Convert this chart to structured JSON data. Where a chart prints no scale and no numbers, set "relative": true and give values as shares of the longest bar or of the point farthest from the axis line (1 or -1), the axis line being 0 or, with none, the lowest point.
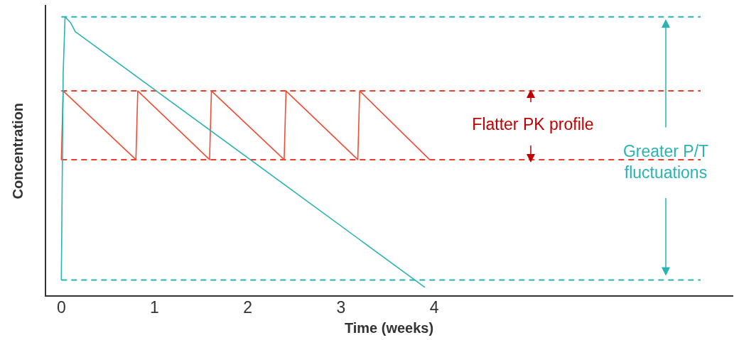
{
  "chart_data": {
    "type": "line",
    "relative": true,
    "xlabel": "Time (weeks)",
    "ylabel": "Concentration",
    "xlim": [
      -0.17,
      7.2
    ],
    "xticks": [
      0,
      1,
      2,
      3,
      4
    ],
    "grid": false,
    "legend": false,
    "marker": "none",
    "line_style": "solid",
    "series": [
      {
        "color": "#2ab3b3",
        "x": [
          0,
          0.02,
          0.04,
          0.1,
          0.15,
          3.9
        ],
        "values": [
          0.058,
          0.8,
          1.0,
          0.979,
          0.947,
          0.032
        ]
      },
      {
        "color": "#f04e37",
        "x": [
          0,
          0.02,
          0.8,
          0.82,
          1.59,
          1.61,
          2.39,
          2.41,
          3.18,
          3.2,
          3.95
        ],
        "values": [
          0.489,
          0.735,
          0.489,
          0.735,
          0.489,
          0.735,
          0.489,
          0.735,
          0.489,
          0.735,
          0.489
        ]
      }
    ],
    "ref_lines": [
      {
        "axis": "y",
        "value": 1.0,
        "color": "#2ab3b3",
        "line_style": "dashed"
      },
      {
        "axis": "y",
        "value": 0.058,
        "color": "#2ab3b3",
        "line_style": "dashed"
      },
      {
        "axis": "y",
        "value": 0.735,
        "color": "#e8402a",
        "line_style": "dashed"
      },
      {
        "axis": "y",
        "value": 0.489,
        "color": "#e8402a",
        "line_style": "dashed"
      }
    ],
    "annotations": [
      "Flatter PK profile",
      "Greater P/T fluctuations"
    ]
  }
}
